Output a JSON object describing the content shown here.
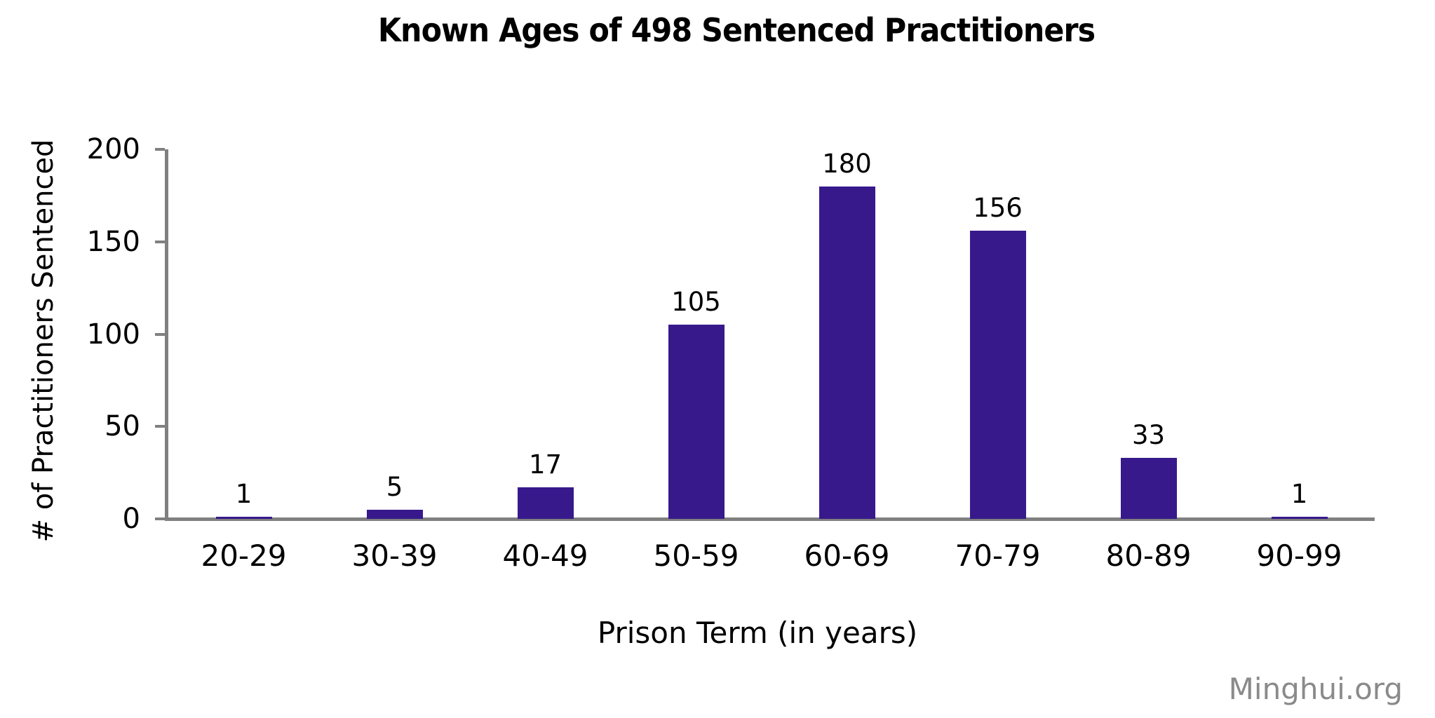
{
  "figure": {
    "watermark": "Minghui.org"
  },
  "chart_data": {
    "type": "bar",
    "title": "Known Ages of 498 Sentenced Practitioners",
    "categories": [
      "20-29",
      "30-39",
      "40-49",
      "50-59",
      "60-69",
      "70-79",
      "80-89",
      "90-99"
    ],
    "values": [
      1,
      5,
      17,
      105,
      180,
      156,
      33,
      1
    ],
    "total": 498,
    "xlabel": "Prison Term (in years)",
    "ylabel": "# of Practitioners Sentenced",
    "ylim": [
      0,
      200
    ],
    "yticks": [
      0,
      50,
      100,
      150,
      200
    ],
    "grid": false,
    "legend": "none",
    "value_labels": true,
    "bar_color": "#37198C",
    "axis_color": "#808080",
    "text_color": "#000000",
    "watermark_color": "#8a8a8a"
  }
}
